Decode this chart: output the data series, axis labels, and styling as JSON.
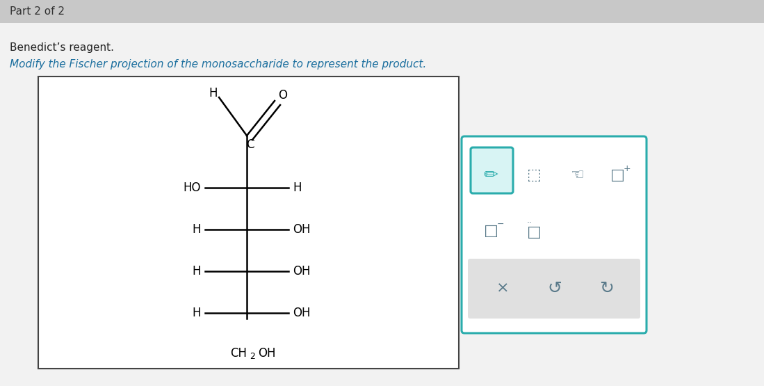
{
  "bg_top_bar": "#c8c8c8",
  "bg_main": "#e8e8e8",
  "title_text": "Part 2 of 2",
  "title_color": "#333333",
  "reagent_text": "Benedict’s reagent.",
  "reagent_color": "#222222",
  "instruction_text": "Modify the Fischer projection of the monosaccharide to represent the product.",
  "instruction_color": "#1a6e9e",
  "draw_box_border": "#444444",
  "toolbar_border": "#2aacac",
  "toolbar_bg": "#ffffff",
  "pencil_box_border": "#2aacac",
  "pencil_box_fill": "#d8f4f4",
  "bottom_bar_fill": "#e0e0e0",
  "icon_color": "#2aacac",
  "icon_color2": "#5a7a8a"
}
